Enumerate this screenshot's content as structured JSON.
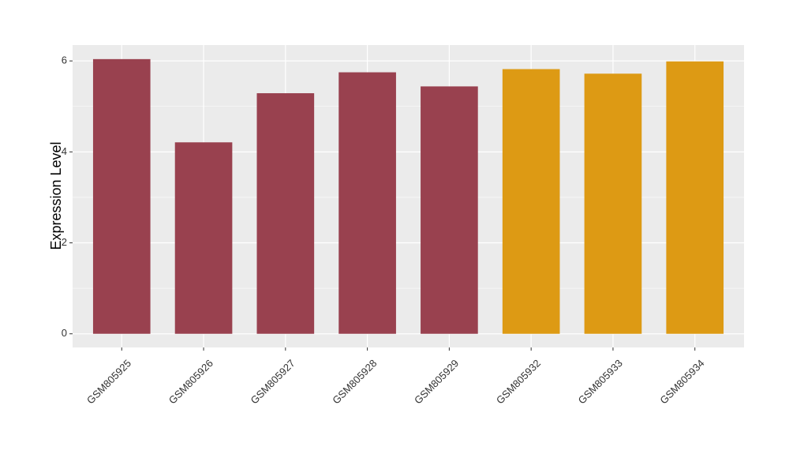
{
  "chart_data": {
    "type": "bar",
    "y_label": "Expression Level",
    "categories": [
      "GSM805925",
      "GSM805926",
      "GSM805927",
      "GSM805928",
      "GSM805929",
      "GSM805932",
      "GSM805933",
      "GSM805934"
    ],
    "values": [
      6.04,
      4.21,
      5.29,
      5.75,
      5.44,
      5.82,
      5.72,
      5.99
    ],
    "colors": [
      "#99414f",
      "#99414f",
      "#99414f",
      "#99414f",
      "#99414f",
      "#dd9a14",
      "#dd9a14",
      "#dd9a14"
    ],
    "ylim": [
      -0.3,
      6.35
    ],
    "yticks": [
      0,
      2,
      4,
      6
    ],
    "grid": true
  }
}
